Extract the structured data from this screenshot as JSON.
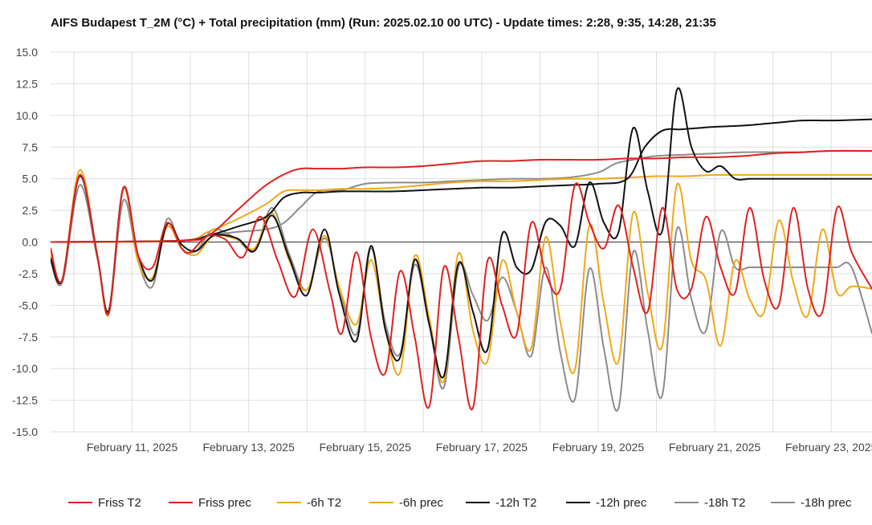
{
  "chart_data": {
    "type": "line",
    "title": "AIFS Budapest T_2M (°C) + Total precipitation (mm) (Run: 2025.02.10 00 UTC) - Update times: 2:28, 9:35, 14:28, 21:35",
    "xlabel": "",
    "ylabel": "",
    "ylim": [
      -15,
      15
    ],
    "y_ticks": [
      "15.0",
      "12.5",
      "10.0",
      "7.5",
      "5.0",
      "2.5",
      "0.0",
      "-2.5",
      "-5.0",
      "-7.5",
      "-10.0",
      "-12.5",
      "-15.0"
    ],
    "x_range_days": [
      9.6,
      23.7
    ],
    "x_tick_labels": [
      {
        "label": "February 11, 2025",
        "day": 11
      },
      {
        "label": "February 13, 2025",
        "day": 13
      },
      {
        "label": "February 15, 2025",
        "day": 15
      },
      {
        "label": "February 17, 2025",
        "day": 17
      },
      {
        "label": "February 19, 2025",
        "day": 19
      },
      {
        "label": "February 21, 2025",
        "day": 21
      },
      {
        "label": "February 23, 2025",
        "day": 23
      }
    ],
    "grid": true,
    "legend_position": "bottom",
    "series": [
      {
        "name": "Friss T2",
        "color": "#e02020",
        "x": [
          9.6,
          9.8,
          10.1,
          10.4,
          10.6,
          10.85,
          11.1,
          11.35,
          11.6,
          11.85,
          12.0,
          12.3,
          12.6,
          12.9,
          13.2,
          13.5,
          13.8,
          14.1,
          14.4,
          14.6,
          14.85,
          15.1,
          15.35,
          15.6,
          15.85,
          16.1,
          16.35,
          16.6,
          16.85,
          17.1,
          17.35,
          17.6,
          17.85,
          18.1,
          18.35,
          18.6,
          18.85,
          19.1,
          19.35,
          19.6,
          19.85,
          20.1,
          20.35,
          20.6,
          20.85,
          21.1,
          21.35,
          21.6,
          21.85,
          22.1,
          22.35,
          22.6,
          22.85,
          23.1,
          23.35,
          23.7
        ],
        "y": [
          -0.5,
          -3,
          5.3,
          -1,
          -5.6,
          4.3,
          -1,
          -2,
          1.5,
          -0.5,
          -0.8,
          0.5,
          0.2,
          -1.2,
          2,
          -1.5,
          -4.3,
          1,
          -4,
          -7.2,
          -0.8,
          -7.5,
          -10.3,
          -2.3,
          -7.5,
          -13,
          -2,
          -7.5,
          -13.1,
          -1.5,
          -5,
          -7.3,
          1.5,
          -2.5,
          -3.7,
          4.5,
          1.5,
          -0.5,
          2.9,
          -2,
          -5.5,
          2.7,
          -3.7,
          -3.7,
          2,
          -2,
          -4,
          2.7,
          -3,
          -5,
          2.7,
          -3.7,
          -5.5,
          2.7,
          -0.8,
          -3.7
        ]
      },
      {
        "name": "Friss prec",
        "color": "#e02020",
        "x": [
          9.6,
          11.8,
          12.3,
          12.8,
          13.3,
          13.8,
          14.2,
          14.6,
          15.0,
          15.5,
          16.0,
          16.5,
          17.0,
          17.5,
          18.0,
          18.5,
          19.0,
          19.5,
          20.0,
          20.5,
          21.0,
          21.5,
          22.0,
          22.5,
          23.0,
          23.7
        ],
        "y": [
          0,
          0.1,
          0.5,
          2.5,
          4.5,
          5.7,
          5.8,
          5.8,
          5.9,
          5.9,
          6.0,
          6.2,
          6.4,
          6.4,
          6.5,
          6.5,
          6.5,
          6.6,
          6.6,
          6.7,
          6.7,
          6.8,
          7.0,
          7.1,
          7.2,
          7.2
        ]
      },
      {
        "name": "-6h T2",
        "color": "#f0a818",
        "x": [
          9.6,
          9.8,
          10.1,
          10.4,
          10.6,
          10.85,
          11.1,
          11.35,
          11.6,
          11.85,
          12.1,
          12.4,
          12.8,
          13.1,
          13.4,
          13.7,
          14.0,
          14.3,
          14.55,
          14.85,
          15.1,
          15.35,
          15.6,
          15.85,
          16.1,
          16.35,
          16.6,
          16.85,
          17.1,
          17.35,
          17.6,
          17.85,
          18.1,
          18.35,
          18.6,
          18.85,
          19.1,
          19.35,
          19.6,
          19.85,
          20.1,
          20.35,
          20.6,
          20.85,
          21.1,
          21.35,
          21.6,
          21.85,
          22.1,
          22.35,
          22.6,
          22.85,
          23.1,
          23.35,
          23.7
        ],
        "y": [
          -1,
          -3,
          5.7,
          -1,
          -5.7,
          4.2,
          -1.5,
          -2.8,
          1.2,
          -0.5,
          -1,
          0.5,
          0.2,
          -0.5,
          2.3,
          -1.5,
          -3.8,
          0.5,
          -3.5,
          -6.5,
          -1.4,
          -7,
          -10.3,
          -1.1,
          -6,
          -11,
          -0.9,
          -7,
          -9.4,
          -1.5,
          -5.5,
          -8.4,
          0.4,
          -6.3,
          -10.1,
          1.3,
          -5,
          -9.4,
          2.3,
          -4,
          -8.2,
          4.5,
          -1.5,
          -3,
          -8.2,
          -1.5,
          -4.5,
          -5.5,
          1.7,
          -3.2,
          -5.8,
          1.0,
          -4.0,
          -3.5,
          -3.7
        ]
      },
      {
        "name": "-6h prec",
        "color": "#f0a818",
        "x": [
          9.6,
          11.8,
          12.3,
          12.8,
          13.3,
          13.6,
          13.9,
          14.2,
          14.6,
          15.0,
          15.5,
          16.0,
          16.5,
          17.0,
          17.5,
          18.0,
          18.5,
          19.0,
          19.5,
          20.0,
          20.5,
          21.0,
          21.5,
          22.0,
          22.5,
          23.0,
          23.7
        ],
        "y": [
          0,
          0.1,
          0.8,
          1.8,
          3.0,
          4.0,
          4.1,
          4.1,
          4.2,
          4.2,
          4.3,
          4.5,
          4.7,
          4.8,
          4.8,
          4.9,
          5.0,
          5.0,
          5.1,
          5.2,
          5.2,
          5.3,
          5.3,
          5.3,
          5.3,
          5.3,
          5.3
        ]
      },
      {
        "name": "-12h T2",
        "color": "#111111",
        "x": [
          9.6,
          9.8,
          10.1,
          10.4,
          10.6,
          10.85,
          11.1,
          11.35,
          11.6,
          11.85,
          12.1,
          12.4,
          12.8,
          13.1,
          13.4,
          13.7,
          14.0,
          14.3,
          14.55,
          14.85,
          15.1,
          15.35,
          15.6,
          15.85,
          16.1,
          16.35,
          16.6,
          16.85,
          17.1,
          17.35,
          17.6,
          17.85,
          18.1,
          18.35,
          18.6,
          18.85,
          19.1,
          19.35,
          19.6,
          19.85,
          20.1,
          20.35,
          20.6,
          20.85,
          21.1,
          21.35,
          21.6,
          21.85,
          22.1,
          22.35,
          22.6,
          22.85,
          23.1,
          23.35,
          23.7
        ],
        "y": [
          -1.3,
          -3,
          5.2,
          -1,
          -5.4,
          4.3,
          -1,
          -3,
          1.4,
          -0.2,
          -0.7,
          0.5,
          0.3,
          -0.7,
          2.1,
          -1.3,
          -4.2,
          1.0,
          -4,
          -7.8,
          -0.3,
          -7,
          -9.1,
          -1.4,
          -6.5,
          -10.6,
          -1.7,
          -5.5,
          -8.5,
          0.6,
          -2,
          -2.2,
          1.6,
          1.3,
          -0.3,
          4.7,
          1.5,
          0.8,
          9.0,
          4.0,
          0.9,
          12.0,
          7.5,
          5.6,
          6.0,
          5.0,
          5.0,
          5.0,
          5.0,
          5.0,
          5.0,
          5.0,
          5.0,
          5.0,
          5.0
        ]
      },
      {
        "name": "-12h prec",
        "color": "#111111",
        "x": [
          9.6,
          11.8,
          12.3,
          12.8,
          13.3,
          13.6,
          13.9,
          14.2,
          14.6,
          15.0,
          15.5,
          16.0,
          16.5,
          17.0,
          17.5,
          18.0,
          18.5,
          19.0,
          19.5,
          19.8,
          20.1,
          20.4,
          20.7,
          21.0,
          21.5,
          22.0,
          22.5,
          23.0,
          23.7
        ],
        "y": [
          0,
          0.1,
          0.5,
          1.2,
          2.0,
          3.5,
          3.9,
          3.9,
          4.0,
          4.0,
          4.0,
          4.1,
          4.2,
          4.3,
          4.3,
          4.4,
          4.5,
          4.6,
          5.0,
          7.5,
          8.8,
          8.9,
          9.0,
          9.1,
          9.2,
          9.4,
          9.6,
          9.6,
          9.7
        ]
      },
      {
        "name": "-18h T2",
        "color": "#8c8c8c",
        "x": [
          9.6,
          9.8,
          10.1,
          10.4,
          10.6,
          10.85,
          11.1,
          11.35,
          11.6,
          11.85,
          12.1,
          12.4,
          12.8,
          13.1,
          13.4,
          13.7,
          14.0,
          14.3,
          14.55,
          14.85,
          15.1,
          15.35,
          15.6,
          15.85,
          16.1,
          16.35,
          16.6,
          16.85,
          17.1,
          17.35,
          17.6,
          17.85,
          18.1,
          18.35,
          18.6,
          18.85,
          19.1,
          19.35,
          19.6,
          19.85,
          20.1,
          20.35,
          20.6,
          20.85,
          21.1,
          21.35,
          21.6,
          21.85,
          22.1,
          22.35,
          22.6,
          22.85,
          23.1,
          23.35,
          23.7
        ],
        "y": [
          -1.5,
          -3.2,
          4.5,
          -1.2,
          -5.4,
          3.3,
          -1.5,
          -3.5,
          1.8,
          -0.5,
          -0.7,
          1.0,
          0.2,
          -0.7,
          2.7,
          -1.0,
          -3.8,
          0.3,
          -3.5,
          -7.3,
          -0.5,
          -6.5,
          -8.8,
          -1.8,
          -6.5,
          -11.5,
          -2.0,
          -4.2,
          -6.2,
          -2.8,
          -5.5,
          -9.0,
          -2.0,
          -8.7,
          -12.4,
          -2.1,
          -8.5,
          -13.1,
          -0.8,
          -7.0,
          -12.1,
          1.0,
          -4.5,
          -7.0,
          0.8,
          -2.0,
          -2.0,
          -2.0,
          -2.0,
          -2.0,
          -2.0,
          -2.0,
          -2.0,
          -2.0,
          -7.2
        ]
      },
      {
        "name": "-18h prec",
        "color": "#8c8c8c",
        "x": [
          9.6,
          11.8,
          12.3,
          12.8,
          13.3,
          13.6,
          13.9,
          14.2,
          14.6,
          15.0,
          15.5,
          16.0,
          16.5,
          17.0,
          17.5,
          18.0,
          18.5,
          19.0,
          19.3,
          19.6,
          20.0,
          20.5,
          21.0,
          21.5,
          22.0,
          22.5,
          23.0,
          23.7
        ],
        "y": [
          0,
          0.1,
          0.5,
          0.8,
          1.0,
          1.5,
          2.8,
          4.0,
          4.1,
          4.6,
          4.7,
          4.7,
          4.8,
          4.9,
          5.0,
          5.0,
          5.1,
          5.5,
          6.2,
          6.5,
          6.8,
          6.9,
          7.0,
          7.1,
          7.1,
          7.1,
          7.2,
          7.2
        ]
      }
    ]
  }
}
